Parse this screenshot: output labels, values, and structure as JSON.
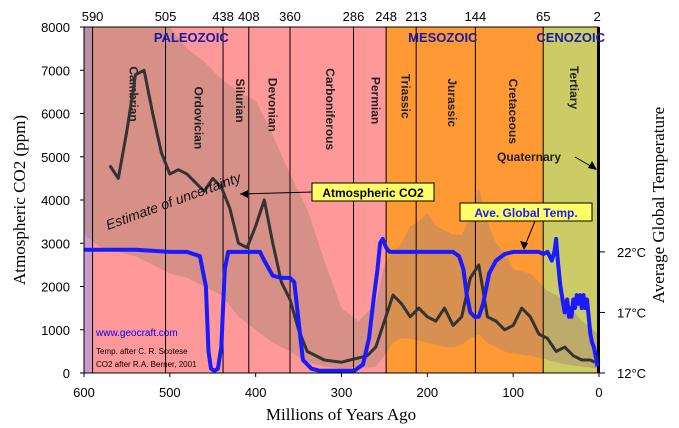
{
  "chart_data": {
    "type": "line",
    "title": "",
    "xlabel": "Millions of Years Ago",
    "ylabel": "Atmospheric CO2 (ppm)",
    "y2label": "Average Global Temperature",
    "xlim": [
      600,
      0
    ],
    "ylim": [
      0,
      8000
    ],
    "x_ticks": [
      600,
      500,
      400,
      300,
      200,
      100,
      0
    ],
    "y_ticks": [
      0,
      1000,
      2000,
      3000,
      4000,
      5000,
      6000,
      7000,
      8000
    ],
    "temp_ticks": [
      {
        "label": "22°C",
        "y": 2800
      },
      {
        "label": "17°C",
        "y": 1400
      },
      {
        "label": "12°C",
        "y": 0
      }
    ],
    "era_boundaries": [
      {
        "label": "590",
        "x": 590
      },
      {
        "label": "505",
        "x": 505
      },
      {
        "label": "438",
        "x": 438
      },
      {
        "label": "408",
        "x": 408
      },
      {
        "label": "360",
        "x": 360
      },
      {
        "label": "286",
        "x": 286
      },
      {
        "label": "248",
        "x": 248
      },
      {
        "label": "213",
        "x": 213
      },
      {
        "label": "144",
        "x": 144
      },
      {
        "label": "65",
        "x": 65
      },
      {
        "label": "2",
        "x": 2
      }
    ],
    "eras": [
      {
        "label": "PALEOZOIC",
        "x": 475,
        "start": 590,
        "end": 248
      },
      {
        "label": "MESOZOIC",
        "x": 182,
        "start": 248,
        "end": 65
      },
      {
        "label": "CENOZOIC",
        "x": 33,
        "start": 65,
        "end": 0
      }
    ],
    "periods": [
      {
        "label": "Cambrian",
        "x": 547,
        "y": 6450
      },
      {
        "label": "Ordovician",
        "x": 471,
        "y": 5900
      },
      {
        "label": "Silurian",
        "x": 423,
        "y": 6300
      },
      {
        "label": "Devonian",
        "x": 385,
        "y": 6200
      },
      {
        "label": "Carboniferous",
        "x": 318,
        "y": 6100
      },
      {
        "label": "Permian",
        "x": 265,
        "y": 6300
      },
      {
        "label": "Triassic",
        "x": 230,
        "y": 6400
      },
      {
        "label": "Jurassic",
        "x": 176,
        "y": 6250
      },
      {
        "label": "Cretaceous",
        "x": 105,
        "y": 6050
      },
      {
        "label": "Tertiary",
        "x": 34,
        "y": 6600
      }
    ],
    "annotations": {
      "uncertainty": "Estimate of uncertainty",
      "co2_label": "Atmospheric CO2",
      "temp_label": "Ave. Global Temp.",
      "quaternary": "Quaternary",
      "site": "www.geocraft.com",
      "credit1": "Temp. after C. R. Scotese",
      "credit2": "CO2 after R.A. Berner, 2001"
    },
    "colors": {
      "cambrian_band": "#cc99cc",
      "paleozoic": "#ff9999",
      "mesozoic": "#ff9933",
      "cenozoic": "#cccc66",
      "uncertainty_band": "#a68570",
      "co2_line": "#333333",
      "temp_line": "#1a1aff",
      "era_label": "#1a1aa8",
      "callout_bg": "#ffff66",
      "site_text": "#0000ff"
    },
    "series": [
      {
        "name": "Atmospheric CO2",
        "x": [
          570,
          560,
          550,
          540,
          530,
          520,
          510,
          500,
          490,
          480,
          470,
          460,
          450,
          440,
          430,
          420,
          410,
          400,
          390,
          380,
          370,
          360,
          350,
          340,
          320,
          300,
          290,
          280,
          270,
          260,
          250,
          240,
          230,
          220,
          210,
          200,
          190,
          180,
          170,
          160,
          150,
          140,
          130,
          120,
          110,
          100,
          90,
          80,
          70,
          60,
          50,
          40,
          30,
          20,
          10,
          5
        ],
        "values": [
          4800,
          4500,
          5600,
          6900,
          7000,
          6000,
          5100,
          4600,
          4700,
          4600,
          4400,
          4200,
          4500,
          4300,
          3800,
          3000,
          2900,
          3400,
          4000,
          3000,
          2100,
          1700,
          1000,
          500,
          300,
          250,
          300,
          350,
          400,
          600,
          1200,
          1800,
          1600,
          1300,
          1500,
          1300,
          1200,
          1500,
          1100,
          1300,
          2200,
          2500,
          1300,
          1200,
          1000,
          1100,
          1500,
          1300,
          900,
          800,
          500,
          600,
          400,
          300,
          300,
          250
        ]
      },
      {
        "name": "Ave. Global Temp.",
        "x": [
          600,
          580,
          540,
          500,
          480,
          465,
          458,
          455,
          452,
          448,
          444,
          440,
          436,
          432,
          425,
          415,
          405,
          395,
          390,
          380,
          370,
          360,
          355,
          350,
          345,
          335,
          325,
          315,
          305,
          295,
          285,
          275,
          268,
          262,
          258,
          255,
          252,
          248,
          244,
          238,
          230,
          220,
          200,
          180,
          170,
          163,
          158,
          154,
          150,
          145,
          140,
          135,
          128,
          120,
          110,
          100,
          90,
          80,
          70,
          65,
          60,
          55,
          52,
          50,
          48,
          45,
          40,
          37,
          35,
          34,
          32,
          30,
          28,
          26,
          24,
          22,
          20,
          18,
          16,
          14,
          12,
          10,
          8,
          6,
          4,
          3,
          2
        ],
        "values": [
          2850,
          2850,
          2850,
          2800,
          2800,
          2700,
          2000,
          500,
          100,
          50,
          100,
          600,
          2400,
          2800,
          2800,
          2800,
          2800,
          2800,
          2600,
          2250,
          2200,
          2200,
          2100,
          1200,
          300,
          100,
          50,
          50,
          50,
          50,
          50,
          200,
          800,
          1800,
          2400,
          3000,
          3100,
          2900,
          2800,
          2800,
          2800,
          2800,
          2800,
          2800,
          2800,
          2700,
          2400,
          1800,
          1400,
          1300,
          1300,
          1600,
          2300,
          2600,
          2750,
          2800,
          2800,
          2800,
          2800,
          2750,
          2800,
          2600,
          2800,
          3100,
          2600,
          2000,
          1400,
          1700,
          1300,
          1500,
          1300,
          1700,
          1500,
          1800,
          1600,
          1800,
          1500,
          1800,
          1500,
          1700,
          1300,
          900,
          700,
          600,
          400,
          300,
          150
        ]
      }
    ],
    "uncertainty_upper": {
      "x": [
        600,
        580,
        560,
        540,
        520,
        500,
        480,
        460,
        440,
        420,
        400,
        380,
        360,
        340,
        320,
        300,
        280,
        260,
        250,
        240,
        230,
        220,
        210,
        200,
        190,
        180,
        170,
        160,
        150,
        140,
        130,
        120,
        110,
        100,
        80,
        60,
        40,
        20,
        0
      ],
      "values": [
        8000,
        8000,
        8000,
        8000,
        8000,
        8000,
        7500,
        7200,
        6800,
        6500,
        6300,
        5500,
        4600,
        3800,
        2600,
        1500,
        1200,
        1600,
        2500,
        2800,
        3000,
        3400,
        3500,
        3700,
        3400,
        3300,
        3200,
        3200,
        3600,
        4300,
        3500,
        3000,
        2800,
        2400,
        2300,
        1900,
        1700,
        1200,
        900
      ]
    },
    "uncertainty_lower": {
      "x": [
        600,
        580,
        560,
        540,
        520,
        500,
        480,
        460,
        440,
        420,
        400,
        380,
        360,
        340,
        320,
        300,
        280,
        260,
        250,
        240,
        230,
        220,
        210,
        200,
        190,
        180,
        170,
        160,
        150,
        140,
        130,
        120,
        110,
        100,
        80,
        60,
        40,
        20,
        0
      ],
      "values": [
        3200,
        2900,
        2800,
        2700,
        2500,
        2300,
        2200,
        2000,
        1800,
        1300,
        1000,
        700,
        500,
        250,
        150,
        100,
        100,
        150,
        400,
        700,
        800,
        800,
        750,
        700,
        650,
        600,
        600,
        650,
        800,
        900,
        700,
        600,
        500,
        450,
        400,
        300,
        200,
        150,
        100
      ]
    }
  }
}
